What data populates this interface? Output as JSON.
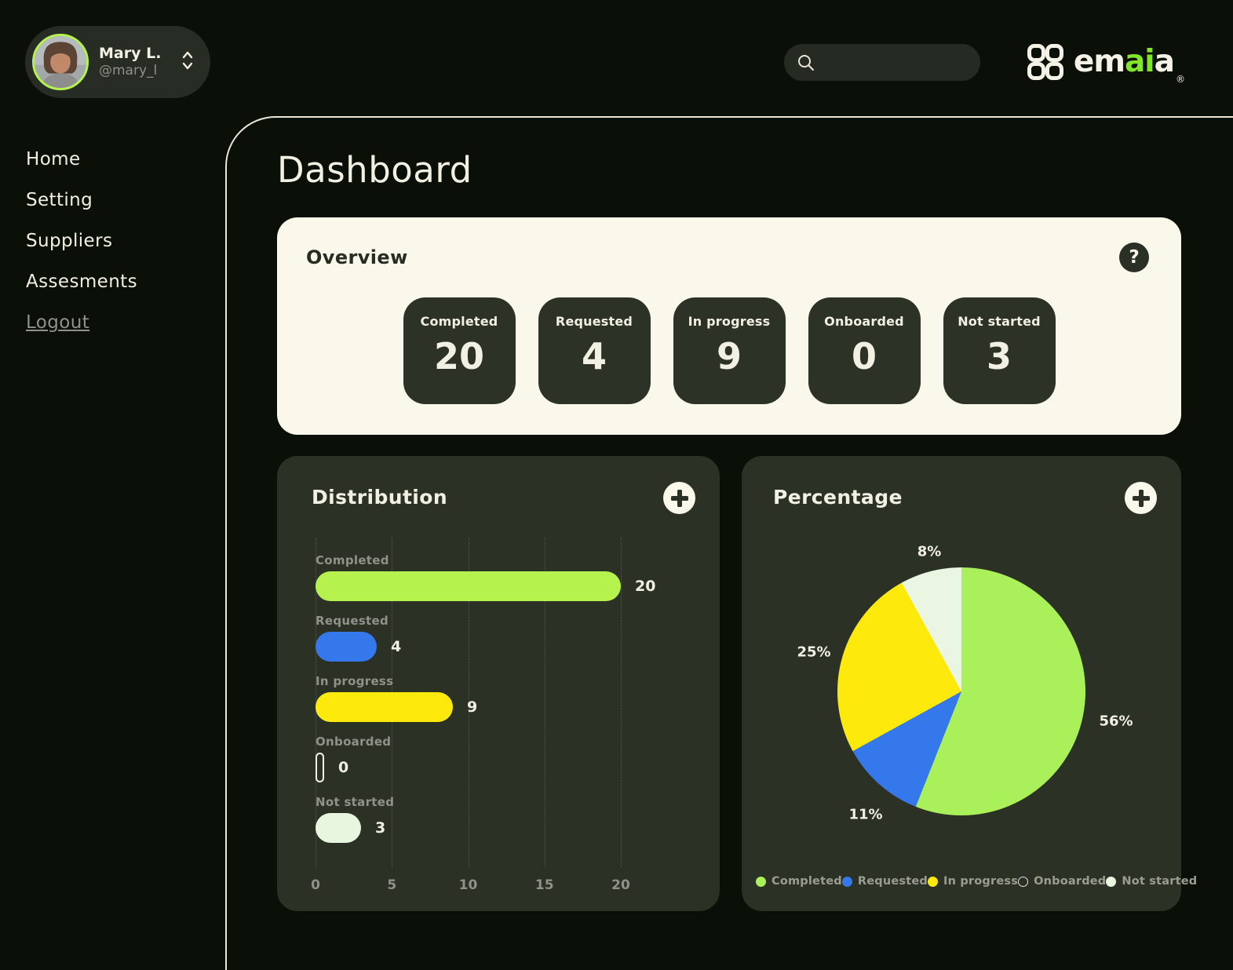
{
  "header": {
    "user": {
      "name": "Mary L.",
      "handle": "@mary_l"
    },
    "search": {
      "value": ""
    },
    "logo": {
      "part1": "em",
      "part2": "ai",
      "part3": "a",
      "reg": "®"
    }
  },
  "sidebar": {
    "items": [
      {
        "label": "Home"
      },
      {
        "label": "Setting"
      },
      {
        "label": "Suppliers"
      },
      {
        "label": "Assesments"
      }
    ],
    "logout_label": "Logout"
  },
  "page": {
    "title": "Dashboard"
  },
  "overview": {
    "title": "Overview",
    "help_glyph": "?",
    "stats": [
      {
        "label": "Completed",
        "value": "20"
      },
      {
        "label": "Requested",
        "value": "4"
      },
      {
        "label": "In progress",
        "value": "9"
      },
      {
        "label": "Onboarded",
        "value": "0"
      },
      {
        "label": "Not started",
        "value": "3"
      }
    ]
  },
  "distribution_card": {
    "title": "Distribution"
  },
  "percentage_card": {
    "title": "Percentage"
  },
  "colors": {
    "background": "#0a0f08",
    "card_dark": "#2c3126",
    "card_cream": "#faf8eb",
    "accent_lime": "#b5f24e",
    "logo_green": "#82e628",
    "text_cream": "#f2efe3",
    "text_gray": "#8f928a"
  },
  "chart_data": [
    {
      "type": "bar",
      "title": "Distribution",
      "orientation": "horizontal",
      "categories": [
        "Completed",
        "Requested",
        "In progress",
        "Onboarded",
        "Not started"
      ],
      "values": [
        20,
        4,
        9,
        0,
        3
      ],
      "colors": [
        "#b5f24e",
        "#3478ec",
        "#fdea0c",
        "none",
        "#e9f6df"
      ],
      "xlim": [
        0,
        20
      ],
      "xticks": [
        "0",
        "5",
        "10",
        "15",
        "20"
      ],
      "grid": "dotted-vertical"
    },
    {
      "type": "pie",
      "title": "Percentage",
      "labels": [
        "Completed",
        "Requested",
        "In progress",
        "Onboarded",
        "Not started"
      ],
      "values_percent": [
        56,
        11,
        25,
        0,
        8
      ],
      "colors": [
        "#a9f05a",
        "#3478ec",
        "#fdea0c",
        "none",
        "#eaf6e2"
      ],
      "slice_labels": [
        "8%",
        "25%",
        "11%",
        "56%"
      ],
      "start_angle_deg": 0,
      "direction": "clockwise",
      "legend_position": "bottom"
    }
  ]
}
